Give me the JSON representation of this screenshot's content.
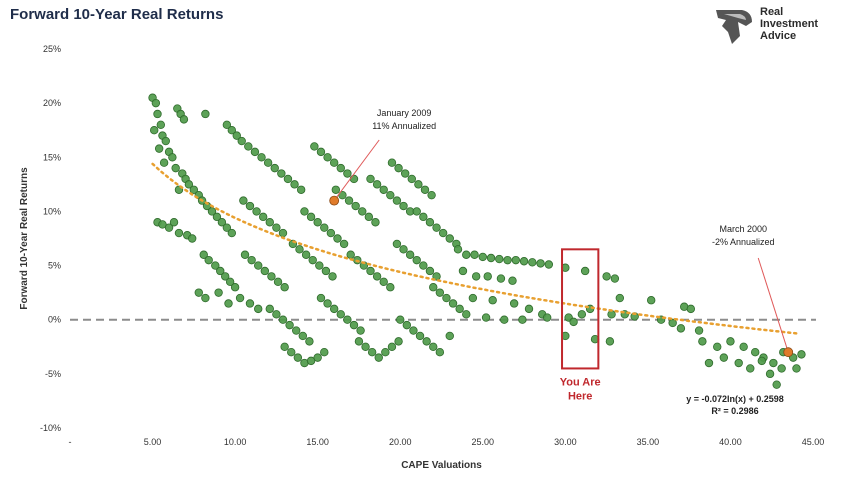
{
  "header": {
    "title": "Forward 10-Year Real Returns",
    "brand_line1": "Real",
    "brand_line2": "Investment",
    "brand_line3": "Advice",
    "logo_icon": "eagle-head-icon"
  },
  "colors": {
    "points": "#4f9a4a",
    "points_edge": "#2f6b2c",
    "trend": "#e8a030",
    "zero_line": "#8c8c8c",
    "highlight_box": "#c0282d",
    "marker": "#e07b2a",
    "title": "#1f2d4a"
  },
  "chart_data": {
    "type": "scatter",
    "title": "Forward 10-Year Real Returns",
    "xlabel": "CAPE Valuations",
    "ylabel": "Forward 10-Year Real Returns",
    "xlim": [
      0,
      45
    ],
    "ylim": [
      -0.1,
      0.25
    ],
    "x_ticks": [
      0,
      5,
      10,
      15,
      20,
      25,
      30,
      35,
      40,
      45
    ],
    "x_tick_labels": [
      "-",
      "5.00",
      "10.00",
      "15.00",
      "20.00",
      "25.00",
      "30.00",
      "35.00",
      "40.00",
      "45.00"
    ],
    "y_ticks": [
      -0.1,
      -0.05,
      0,
      0.05,
      0.1,
      0.15,
      0.2,
      0.25
    ],
    "y_tick_labels": [
      "-10%",
      "-5%",
      "0%",
      "5%",
      "10%",
      "15%",
      "20%",
      "25%"
    ],
    "grid": false,
    "reference_line": {
      "y": 0,
      "style": "dashed"
    },
    "trendline": {
      "type": "log",
      "a": -0.072,
      "b": 0.2598,
      "x_range": [
        5,
        44
      ]
    },
    "equation_text": "y = -0.072ln(x) + 0.2598",
    "r2_text": "R² = 0.2986",
    "annotations": [
      {
        "label1": "January 2009",
        "label2": "11% Annualized",
        "x": 16.0,
        "y": 0.11
      },
      {
        "label1": "March 2000",
        "label2": "-2% Annualized",
        "x": 43.5,
        "y": -0.03
      }
    ],
    "highlight": {
      "label1": "You Are",
      "label2": "Here",
      "x_range": [
        29.8,
        32.0
      ],
      "y_range": [
        -0.045,
        0.065
      ]
    },
    "series": [
      {
        "points": [
          [
            5.0,
            0.205
          ],
          [
            5.2,
            0.2
          ],
          [
            5.3,
            0.19
          ],
          [
            5.5,
            0.18
          ],
          [
            5.1,
            0.175
          ],
          [
            5.6,
            0.17
          ],
          [
            5.8,
            0.165
          ],
          [
            5.4,
            0.158
          ],
          [
            6.0,
            0.155
          ],
          [
            6.2,
            0.15
          ],
          [
            5.7,
            0.145
          ],
          [
            6.5,
            0.195
          ],
          [
            6.7,
            0.19
          ],
          [
            6.9,
            0.185
          ],
          [
            6.4,
            0.14
          ],
          [
            6.8,
            0.135
          ],
          [
            7.0,
            0.13
          ],
          [
            7.2,
            0.125
          ],
          [
            6.6,
            0.12
          ],
          [
            7.5,
            0.12
          ],
          [
            7.8,
            0.115
          ],
          [
            5.3,
            0.09
          ],
          [
            5.6,
            0.088
          ],
          [
            6.0,
            0.085
          ],
          [
            6.3,
            0.09
          ],
          [
            6.6,
            0.08
          ],
          [
            7.1,
            0.078
          ],
          [
            7.4,
            0.075
          ],
          [
            8.2,
            0.19
          ],
          [
            9.5,
            0.18
          ],
          [
            9.8,
            0.175
          ],
          [
            10.1,
            0.17
          ],
          [
            10.4,
            0.165
          ],
          [
            10.8,
            0.16
          ],
          [
            11.2,
            0.155
          ],
          [
            8.0,
            0.11
          ],
          [
            8.3,
            0.105
          ],
          [
            8.6,
            0.1
          ],
          [
            8.9,
            0.095
          ],
          [
            9.2,
            0.09
          ],
          [
            9.5,
            0.085
          ],
          [
            9.8,
            0.08
          ],
          [
            8.1,
            0.06
          ],
          [
            8.4,
            0.055
          ],
          [
            8.8,
            0.05
          ],
          [
            9.1,
            0.045
          ],
          [
            9.4,
            0.04
          ],
          [
            9.7,
            0.035
          ],
          [
            10.0,
            0.03
          ],
          [
            7.8,
            0.025
          ],
          [
            8.2,
            0.02
          ],
          [
            9.0,
            0.025
          ],
          [
            9.6,
            0.015
          ],
          [
            10.3,
            0.02
          ],
          [
            10.9,
            0.015
          ],
          [
            11.4,
            0.01
          ],
          [
            10.5,
            0.11
          ],
          [
            10.9,
            0.105
          ],
          [
            11.3,
            0.1
          ],
          [
            11.7,
            0.095
          ],
          [
            12.1,
            0.09
          ],
          [
            12.5,
            0.085
          ],
          [
            12.9,
            0.08
          ],
          [
            10.6,
            0.06
          ],
          [
            11.0,
            0.055
          ],
          [
            11.4,
            0.05
          ],
          [
            11.8,
            0.045
          ],
          [
            12.2,
            0.04
          ],
          [
            12.6,
            0.035
          ],
          [
            13.0,
            0.03
          ],
          [
            11.6,
            0.15
          ],
          [
            12.0,
            0.145
          ],
          [
            12.4,
            0.14
          ],
          [
            12.8,
            0.135
          ],
          [
            13.2,
            0.13
          ],
          [
            13.6,
            0.125
          ],
          [
            14.0,
            0.12
          ],
          [
            12.1,
            0.01
          ],
          [
            12.5,
            0.005
          ],
          [
            12.9,
            0.0
          ],
          [
            13.3,
            -0.005
          ],
          [
            13.7,
            -0.01
          ],
          [
            14.1,
            -0.015
          ],
          [
            14.5,
            -0.02
          ],
          [
            13.0,
            -0.025
          ],
          [
            13.4,
            -0.03
          ],
          [
            13.8,
            -0.035
          ],
          [
            14.2,
            -0.04
          ],
          [
            14.6,
            -0.038
          ],
          [
            15.0,
            -0.035
          ],
          [
            15.4,
            -0.03
          ],
          [
            13.5,
            0.07
          ],
          [
            13.9,
            0.065
          ],
          [
            14.3,
            0.06
          ],
          [
            14.7,
            0.055
          ],
          [
            15.1,
            0.05
          ],
          [
            15.5,
            0.045
          ],
          [
            15.9,
            0.04
          ],
          [
            14.2,
            0.1
          ],
          [
            14.6,
            0.095
          ],
          [
            15.0,
            0.09
          ],
          [
            15.4,
            0.085
          ],
          [
            15.8,
            0.08
          ],
          [
            16.2,
            0.075
          ],
          [
            16.6,
            0.07
          ],
          [
            14.8,
            0.16
          ],
          [
            15.2,
            0.155
          ],
          [
            15.6,
            0.15
          ],
          [
            16.0,
            0.145
          ],
          [
            16.4,
            0.14
          ],
          [
            16.8,
            0.135
          ],
          [
            17.2,
            0.13
          ],
          [
            15.2,
            0.02
          ],
          [
            15.6,
            0.015
          ],
          [
            16.0,
            0.01
          ],
          [
            16.4,
            0.005
          ],
          [
            16.8,
            0.0
          ],
          [
            17.2,
            -0.005
          ],
          [
            17.6,
            -0.01
          ],
          [
            16.1,
            0.12
          ],
          [
            16.5,
            0.115
          ],
          [
            16.9,
            0.11
          ],
          [
            17.3,
            0.105
          ],
          [
            17.7,
            0.1
          ],
          [
            18.1,
            0.095
          ],
          [
            18.5,
            0.09
          ],
          [
            17.0,
            0.06
          ],
          [
            17.4,
            0.055
          ],
          [
            17.8,
            0.05
          ],
          [
            18.2,
            0.045
          ],
          [
            18.6,
            0.04
          ],
          [
            19.0,
            0.035
          ],
          [
            19.4,
            0.03
          ],
          [
            17.5,
            -0.02
          ],
          [
            17.9,
            -0.025
          ],
          [
            18.3,
            -0.03
          ],
          [
            18.7,
            -0.035
          ],
          [
            19.1,
            -0.03
          ],
          [
            19.5,
            -0.025
          ],
          [
            19.9,
            -0.02
          ],
          [
            18.2,
            0.13
          ],
          [
            18.6,
            0.125
          ],
          [
            19.0,
            0.12
          ],
          [
            19.4,
            0.115
          ],
          [
            19.8,
            0.11
          ],
          [
            20.2,
            0.105
          ],
          [
            20.6,
            0.1
          ],
          [
            19.5,
            0.145
          ],
          [
            19.9,
            0.14
          ],
          [
            20.3,
            0.135
          ],
          [
            20.7,
            0.13
          ],
          [
            21.1,
            0.125
          ],
          [
            21.5,
            0.12
          ],
          [
            21.9,
            0.115
          ],
          [
            19.8,
            0.07
          ],
          [
            20.2,
            0.065
          ],
          [
            20.6,
            0.06
          ],
          [
            21.0,
            0.055
          ],
          [
            21.4,
            0.05
          ],
          [
            21.8,
            0.045
          ],
          [
            22.2,
            0.04
          ],
          [
            20.0,
            0.0
          ],
          [
            20.4,
            -0.005
          ],
          [
            20.8,
            -0.01
          ],
          [
            21.2,
            -0.015
          ],
          [
            21.6,
            -0.02
          ],
          [
            22.0,
            -0.025
          ],
          [
            22.4,
            -0.03
          ],
          [
            21.0,
            0.1
          ],
          [
            21.4,
            0.095
          ],
          [
            21.8,
            0.09
          ],
          [
            22.2,
            0.085
          ],
          [
            22.6,
            0.08
          ],
          [
            23.0,
            0.075
          ],
          [
            23.4,
            0.07
          ],
          [
            22.0,
            0.03
          ],
          [
            22.4,
            0.025
          ],
          [
            22.8,
            0.02
          ],
          [
            23.2,
            0.015
          ],
          [
            23.6,
            0.01
          ],
          [
            24.0,
            0.005
          ],
          [
            23.0,
            -0.015
          ],
          [
            23.5,
            0.065
          ],
          [
            24.0,
            0.06
          ],
          [
            24.5,
            0.06
          ],
          [
            25.0,
            0.058
          ],
          [
            25.5,
            0.057
          ],
          [
            26.0,
            0.056
          ],
          [
            26.5,
            0.055
          ],
          [
            27.0,
            0.055
          ],
          [
            27.5,
            0.054
          ],
          [
            28.0,
            0.053
          ],
          [
            28.5,
            0.052
          ],
          [
            29.0,
            0.051
          ],
          [
            23.8,
            0.045
          ],
          [
            24.6,
            0.04
          ],
          [
            25.3,
            0.04
          ],
          [
            26.1,
            0.038
          ],
          [
            26.8,
            0.036
          ],
          [
            24.4,
            0.02
          ],
          [
            25.6,
            0.018
          ],
          [
            26.9,
            0.015
          ],
          [
            27.8,
            0.01
          ],
          [
            28.6,
            0.005
          ],
          [
            25.2,
            0.002
          ],
          [
            26.3,
            0.0
          ],
          [
            27.4,
            0.0
          ],
          [
            28.9,
            0.002
          ],
          [
            30.0,
            0.048
          ],
          [
            31.2,
            0.045
          ],
          [
            30.2,
            0.002
          ],
          [
            30.5,
            -0.002
          ],
          [
            31.0,
            0.005
          ],
          [
            31.5,
            0.01
          ],
          [
            30.0,
            -0.015
          ],
          [
            31.8,
            -0.018
          ],
          [
            32.5,
            0.04
          ],
          [
            33.0,
            0.038
          ],
          [
            33.3,
            0.02
          ],
          [
            32.8,
            0.005
          ],
          [
            33.6,
            0.005
          ],
          [
            34.2,
            0.003
          ],
          [
            32.7,
            -0.02
          ],
          [
            35.2,
            0.018
          ],
          [
            35.8,
            0.0
          ],
          [
            36.5,
            -0.003
          ],
          [
            37.2,
            0.012
          ],
          [
            37.6,
            0.01
          ],
          [
            38.1,
            -0.01
          ],
          [
            37.0,
            -0.008
          ],
          [
            38.3,
            -0.02
          ],
          [
            39.2,
            -0.025
          ],
          [
            40.0,
            -0.02
          ],
          [
            40.8,
            -0.025
          ],
          [
            41.5,
            -0.03
          ],
          [
            42.0,
            -0.035
          ],
          [
            42.6,
            -0.04
          ],
          [
            43.2,
            -0.03
          ],
          [
            43.8,
            -0.035
          ],
          [
            44.3,
            -0.032
          ],
          [
            41.2,
            -0.045
          ],
          [
            42.4,
            -0.05
          ],
          [
            43.1,
            -0.045
          ],
          [
            44.0,
            -0.045
          ],
          [
            42.8,
            -0.06
          ],
          [
            41.9,
            -0.038
          ],
          [
            40.5,
            -0.04
          ],
          [
            39.6,
            -0.035
          ],
          [
            38.7,
            -0.04
          ],
          [
            43.5,
            -0.03
          ]
        ]
      }
    ]
  }
}
